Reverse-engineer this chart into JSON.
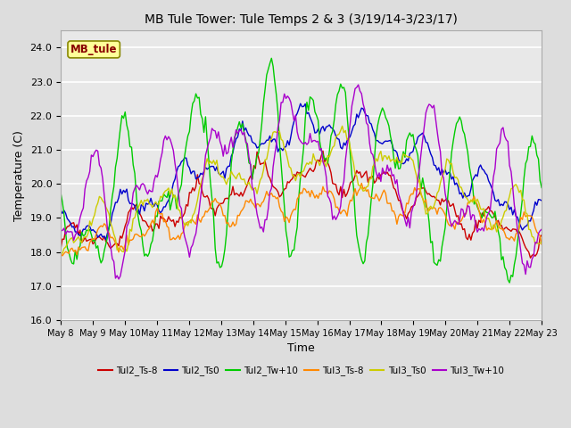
{
  "title": "MB Tule Tower: Tule Temps 2 & 3 (3/19/14-3/23/17)",
  "xlabel": "Time",
  "ylabel": "Temperature (C)",
  "ylim": [
    16.0,
    24.5
  ],
  "yticks": [
    16.0,
    17.0,
    18.0,
    19.0,
    20.0,
    21.0,
    22.0,
    23.0,
    24.0
  ],
  "xtick_labels": [
    "May 8",
    "May 9",
    "May 10",
    "May 11",
    "May 12",
    "May 13",
    "May 14",
    "May 15",
    "May 16",
    "May 17",
    "May 18",
    "May 19",
    "May 20",
    "May 21",
    "May 22",
    "May 23"
  ],
  "series_colors": [
    "#cc0000",
    "#0000cc",
    "#00cc00",
    "#ff8800",
    "#cccc00",
    "#aa00cc"
  ],
  "series_names": [
    "Tul2_Ts-8",
    "Tul2_Ts0",
    "Tul2_Tw+10",
    "Tul3_Ts-8",
    "Tul3_Ts0",
    "Tul3_Tw+10"
  ],
  "watermark_text": "MB_tule",
  "watermark_color": "#880000",
  "watermark_bg": "#ffff99",
  "watermark_edge": "#888800",
  "background_color": "#dddddd",
  "plot_bg_color": "#e8e8e8",
  "grid_color": "#ffffff",
  "figsize": [
    6.4,
    4.8
  ],
  "dpi": 100
}
